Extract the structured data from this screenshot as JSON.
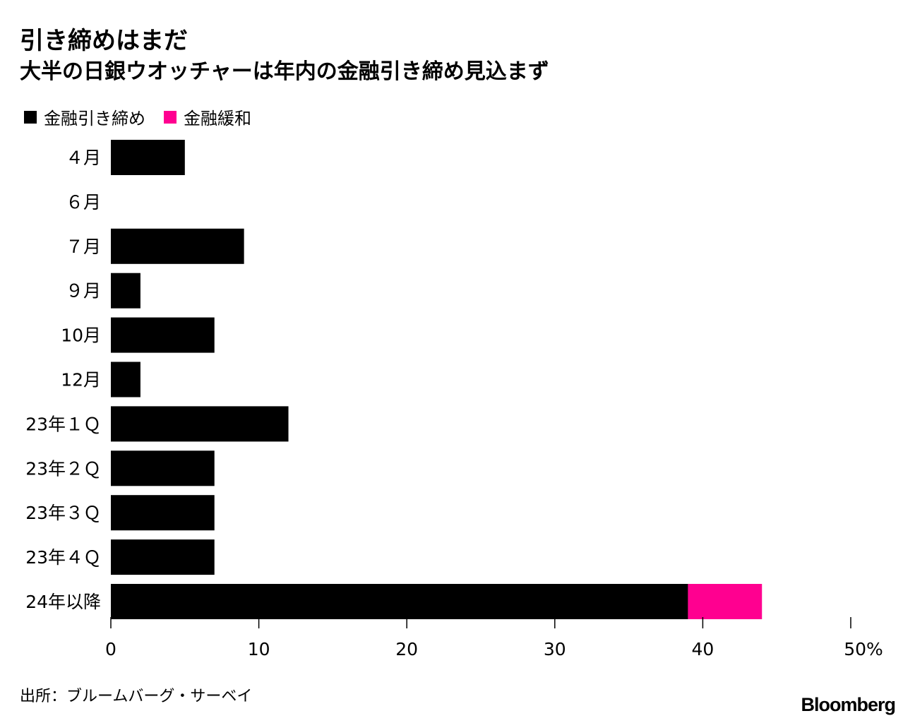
{
  "header": {
    "title": "引き締めはまだ",
    "subtitle": "大半の日銀ウオッチャーは年内の金融引き締め見込まず"
  },
  "footer": {
    "source": "出所：ブルームバーグ・サーベイ",
    "logo": "Bloomberg"
  },
  "chart_data": {
    "type": "bar",
    "orientation": "horizontal",
    "stacked": true,
    "categories": [
      "４月",
      "６月",
      "７月",
      "９月",
      "10月",
      "12月",
      "23年１Ｑ",
      "23年２Ｑ",
      "23年３Ｑ",
      "23年４Ｑ",
      "24年以降"
    ],
    "series": [
      {
        "name": "金融引き締め",
        "color": "#000000",
        "values": [
          5,
          0,
          9,
          2,
          7,
          2,
          12,
          7,
          7,
          7,
          39
        ]
      },
      {
        "name": "金融緩和",
        "color": "#ff0090",
        "values": [
          0,
          0,
          0,
          0,
          0,
          0,
          0,
          0,
          0,
          0,
          5
        ]
      }
    ],
    "xlim": [
      0,
      50
    ],
    "xticks": [
      0,
      10,
      20,
      30,
      40,
      50
    ],
    "xtick_labels": [
      "0",
      "10",
      "20",
      "30",
      "40",
      "50%"
    ],
    "grid": false,
    "legend_position": "top-left"
  }
}
